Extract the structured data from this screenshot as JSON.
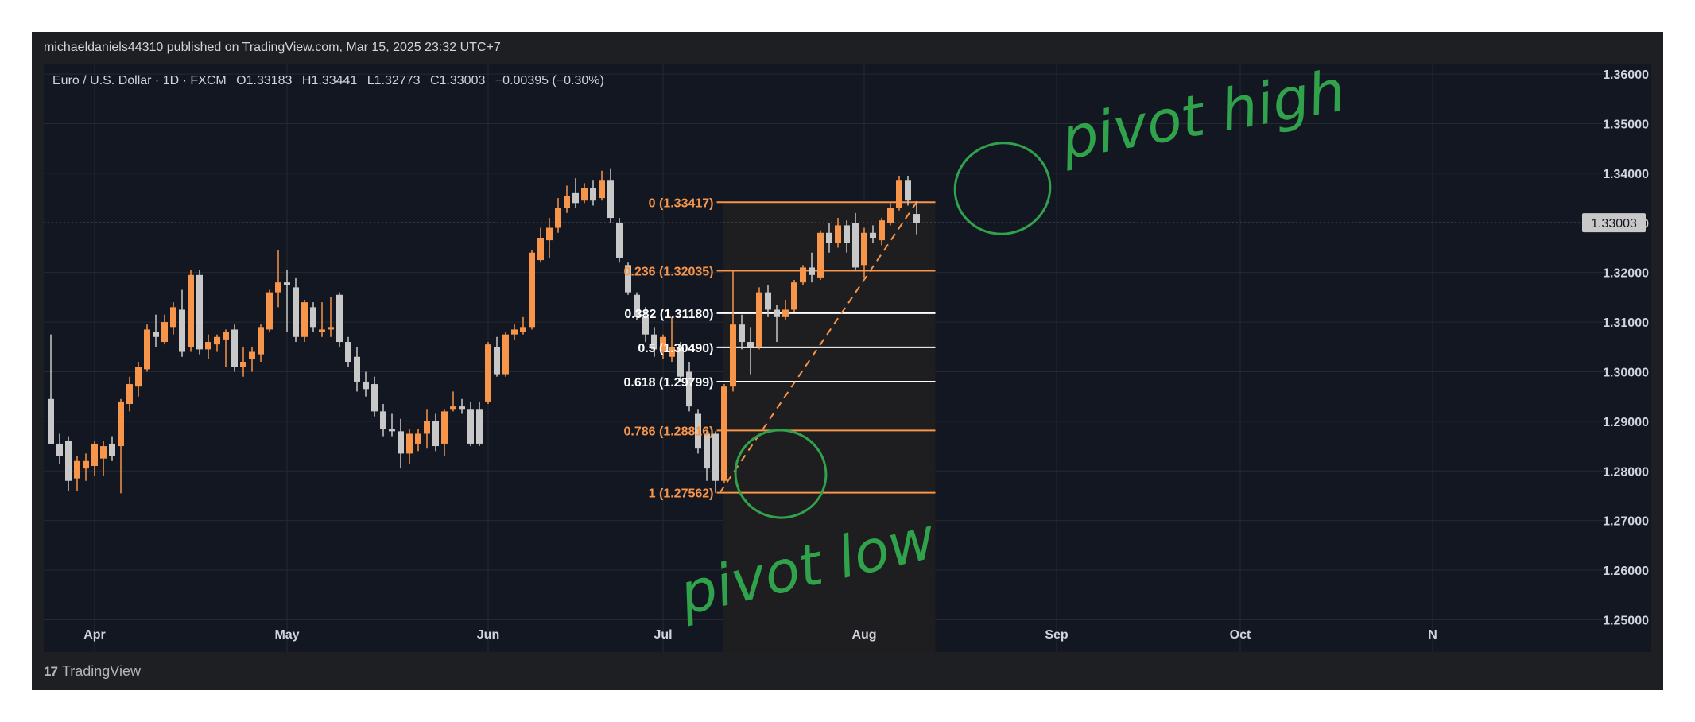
{
  "header": {
    "publisher": "michaeldaniels44310 published on TradingView.com, Mar 15, 2025 23:32 UTC+7"
  },
  "legend": {
    "symbol": "Euro / U.S. Dollar · 1D · FXCM",
    "o_key": "O",
    "o": "1.33183",
    "h_key": "H",
    "h": "1.33441",
    "l_key": "L",
    "l": "1.32773",
    "c_key": "C",
    "c": "1.33003",
    "change": "−0.00395 (−0.30%)"
  },
  "colors": {
    "background": "#131722",
    "up": "#f7954a",
    "down": "#c8c8c8",
    "fib_orange": "#f7954a",
    "fib_white": "#ffffff",
    "annotation_green": "#31a24c",
    "trend_line": "#f7954a"
  },
  "footer": {
    "brand": "TradingView",
    "icon": "tradingview-logo-icon"
  },
  "annotations": {
    "pivot_high": "pivot high",
    "pivot_low": "pivot low"
  },
  "chart_data": {
    "type": "candlestick",
    "title": "Euro / U.S. Dollar · 1D · FXCM",
    "y_axis": {
      "ticks": [
        "1.36000",
        "1.35000",
        "1.34000",
        "1.33000",
        "1.32000",
        "1.31000",
        "1.30000",
        "1.29000",
        "1.28000",
        "1.27000",
        "1.26000",
        "1.25000"
      ],
      "tick_values": [
        1.36,
        1.35,
        1.34,
        1.33,
        1.32,
        1.31,
        1.3,
        1.29,
        1.28,
        1.27,
        1.26,
        1.25
      ],
      "range": [
        1.2435,
        1.3621
      ],
      "position": "right"
    },
    "x_axis": {
      "labels": [
        "Apr",
        "May",
        "Jun",
        "Jul",
        "Aug",
        "Sep",
        "Oct",
        "N"
      ],
      "bold_labels": [
        "Jul"
      ],
      "label_days": [
        10,
        54,
        100,
        140,
        186,
        230,
        272,
        316
      ]
    },
    "grid": true,
    "last_price": {
      "value": 1.33003,
      "label": "1.33003"
    },
    "fibonacci": {
      "levels": [
        {
          "ratio": "0",
          "value": 1.33417,
          "label": "0 (1.33417)",
          "color": "orange"
        },
        {
          "ratio": "0.236",
          "value": 1.32035,
          "label": "0.236 (1.32035)",
          "color": "orange"
        },
        {
          "ratio": "0.382",
          "value": 1.3118,
          "label": "0.382 (1.31180)",
          "color": "white"
        },
        {
          "ratio": "0.5",
          "value": 1.3049,
          "label": "0.5 (1.30490)",
          "color": "white"
        },
        {
          "ratio": "0.618",
          "value": 1.29799,
          "label": "0.618 (1.29799)",
          "color": "white"
        },
        {
          "ratio": "0.786",
          "value": 1.28816,
          "label": "0.786 (1.28816)",
          "color": "orange"
        },
        {
          "ratio": "1",
          "value": 1.27562,
          "label": "1 (1.27562)",
          "color": "orange"
        }
      ],
      "start_day": 153,
      "end_day": 199,
      "trend_from": {
        "day": 153,
        "value": 1.27562
      },
      "trend_to": {
        "day": 198,
        "value": 1.33417
      }
    },
    "candles": [
      {
        "d": 0,
        "o": 1.2945,
        "h": 1.3075,
        "l": 1.2855,
        "c": 1.2855
      },
      {
        "d": 2,
        "o": 1.2855,
        "h": 1.2875,
        "l": 1.2815,
        "c": 1.283
      },
      {
        "d": 4,
        "o": 1.286,
        "h": 1.287,
        "l": 1.276,
        "c": 1.278
      },
      {
        "d": 6,
        "o": 1.2785,
        "h": 1.283,
        "l": 1.276,
        "c": 1.282
      },
      {
        "d": 8,
        "o": 1.2805,
        "h": 1.2835,
        "l": 1.278,
        "c": 1.282
      },
      {
        "d": 10,
        "o": 1.281,
        "h": 1.286,
        "l": 1.279,
        "c": 1.2855
      },
      {
        "d": 12,
        "o": 1.2825,
        "h": 1.286,
        "l": 1.279,
        "c": 1.285
      },
      {
        "d": 14,
        "o": 1.2855,
        "h": 1.287,
        "l": 1.282,
        "c": 1.283
      },
      {
        "d": 16,
        "o": 1.285,
        "h": 1.2945,
        "l": 1.2755,
        "c": 1.294
      },
      {
        "d": 18,
        "o": 1.2935,
        "h": 1.299,
        "l": 1.292,
        "c": 1.2975
      },
      {
        "d": 20,
        "o": 1.297,
        "h": 1.302,
        "l": 1.295,
        "c": 1.301
      },
      {
        "d": 22,
        "o": 1.3005,
        "h": 1.3095,
        "l": 1.3,
        "c": 1.3085
      },
      {
        "d": 24,
        "o": 1.308,
        "h": 1.3115,
        "l": 1.305,
        "c": 1.307
      },
      {
        "d": 26,
        "o": 1.306,
        "h": 1.3115,
        "l": 1.3055,
        "c": 1.31
      },
      {
        "d": 28,
        "o": 1.309,
        "h": 1.314,
        "l": 1.3075,
        "c": 1.313
      },
      {
        "d": 30,
        "o": 1.3125,
        "h": 1.3165,
        "l": 1.303,
        "c": 1.304
      },
      {
        "d": 32,
        "o": 1.305,
        "h": 1.3205,
        "l": 1.304,
        "c": 1.3195
      },
      {
        "d": 34,
        "o": 1.3195,
        "h": 1.3205,
        "l": 1.3035,
        "c": 1.3045
      },
      {
        "d": 36,
        "o": 1.3045,
        "h": 1.3075,
        "l": 1.3025,
        "c": 1.306
      },
      {
        "d": 38,
        "o": 1.3055,
        "h": 1.3075,
        "l": 1.304,
        "c": 1.307
      },
      {
        "d": 40,
        "o": 1.3065,
        "h": 1.3085,
        "l": 1.301,
        "c": 1.308
      },
      {
        "d": 42,
        "o": 1.3085,
        "h": 1.3095,
        "l": 1.3,
        "c": 1.301
      },
      {
        "d": 44,
        "o": 1.301,
        "h": 1.305,
        "l": 1.299,
        "c": 1.302
      },
      {
        "d": 46,
        "o": 1.3025,
        "h": 1.305,
        "l": 1.3,
        "c": 1.304
      },
      {
        "d": 48,
        "o": 1.3035,
        "h": 1.3095,
        "l": 1.302,
        "c": 1.309
      },
      {
        "d": 50,
        "o": 1.3085,
        "h": 1.3165,
        "l": 1.308,
        "c": 1.316
      },
      {
        "d": 52,
        "o": 1.316,
        "h": 1.3245,
        "l": 1.313,
        "c": 1.318
      },
      {
        "d": 54,
        "o": 1.318,
        "h": 1.3205,
        "l": 1.308,
        "c": 1.3175
      },
      {
        "d": 56,
        "o": 1.317,
        "h": 1.319,
        "l": 1.306,
        "c": 1.307
      },
      {
        "d": 58,
        "o": 1.307,
        "h": 1.3145,
        "l": 1.306,
        "c": 1.314
      },
      {
        "d": 60,
        "o": 1.313,
        "h": 1.314,
        "l": 1.308,
        "c": 1.309
      },
      {
        "d": 62,
        "o": 1.308,
        "h": 1.314,
        "l": 1.307,
        "c": 1.3085
      },
      {
        "d": 64,
        "o": 1.3085,
        "h": 1.315,
        "l": 1.307,
        "c": 1.309
      },
      {
        "d": 66,
        "o": 1.3155,
        "h": 1.316,
        "l": 1.305,
        "c": 1.306
      },
      {
        "d": 68,
        "o": 1.306,
        "h": 1.307,
        "l": 1.301,
        "c": 1.302
      },
      {
        "d": 70,
        "o": 1.303,
        "h": 1.305,
        "l": 1.296,
        "c": 1.298
      },
      {
        "d": 72,
        "o": 1.298,
        "h": 1.3,
        "l": 1.295,
        "c": 1.2965
      },
      {
        "d": 74,
        "o": 1.2975,
        "h": 1.299,
        "l": 1.291,
        "c": 1.292
      },
      {
        "d": 76,
        "o": 1.292,
        "h": 1.2935,
        "l": 1.287,
        "c": 1.2885
      },
      {
        "d": 78,
        "o": 1.2885,
        "h": 1.2915,
        "l": 1.287,
        "c": 1.288
      },
      {
        "d": 80,
        "o": 1.288,
        "h": 1.2905,
        "l": 1.2805,
        "c": 1.2835
      },
      {
        "d": 82,
        "o": 1.2835,
        "h": 1.2885,
        "l": 1.2815,
        "c": 1.2875
      },
      {
        "d": 84,
        "o": 1.2855,
        "h": 1.2885,
        "l": 1.284,
        "c": 1.2875
      },
      {
        "d": 86,
        "o": 1.2875,
        "h": 1.2925,
        "l": 1.2845,
        "c": 1.29
      },
      {
        "d": 88,
        "o": 1.29,
        "h": 1.2915,
        "l": 1.284,
        "c": 1.285
      },
      {
        "d": 90,
        "o": 1.2855,
        "h": 1.2925,
        "l": 1.283,
        "c": 1.292
      },
      {
        "d": 92,
        "o": 1.2925,
        "h": 1.296,
        "l": 1.292,
        "c": 1.293
      },
      {
        "d": 94,
        "o": 1.293,
        "h": 1.2945,
        "l": 1.2915,
        "c": 1.2925
      },
      {
        "d": 96,
        "o": 1.2925,
        "h": 1.294,
        "l": 1.285,
        "c": 1.2855
      },
      {
        "d": 98,
        "o": 1.2925,
        "h": 1.294,
        "l": 1.285,
        "c": 1.2855
      },
      {
        "d": 100,
        "o": 1.294,
        "h": 1.306,
        "l": 1.2935,
        "c": 1.3055
      },
      {
        "d": 102,
        "o": 1.305,
        "h": 1.307,
        "l": 1.299,
        "c": 1.2995
      },
      {
        "d": 104,
        "o": 1.2995,
        "h": 1.308,
        "l": 1.299,
        "c": 1.3075
      },
      {
        "d": 106,
        "o": 1.3075,
        "h": 1.3095,
        "l": 1.3065,
        "c": 1.3085
      },
      {
        "d": 108,
        "o": 1.308,
        "h": 1.311,
        "l": 1.3075,
        "c": 1.309
      },
      {
        "d": 110,
        "o": 1.309,
        "h": 1.3245,
        "l": 1.3085,
        "c": 1.324
      },
      {
        "d": 112,
        "o": 1.3225,
        "h": 1.329,
        "l": 1.322,
        "c": 1.327
      },
      {
        "d": 114,
        "o": 1.3265,
        "h": 1.331,
        "l": 1.323,
        "c": 1.329
      },
      {
        "d": 116,
        "o": 1.329,
        "h": 1.335,
        "l": 1.328,
        "c": 1.333
      },
      {
        "d": 118,
        "o": 1.333,
        "h": 1.3375,
        "l": 1.332,
        "c": 1.3355
      },
      {
        "d": 120,
        "o": 1.336,
        "h": 1.339,
        "l": 1.333,
        "c": 1.334
      },
      {
        "d": 122,
        "o": 1.3345,
        "h": 1.338,
        "l": 1.334,
        "c": 1.337
      },
      {
        "d": 124,
        "o": 1.337,
        "h": 1.3385,
        "l": 1.3335,
        "c": 1.3345
      },
      {
        "d": 126,
        "o": 1.335,
        "h": 1.3405,
        "l": 1.3345,
        "c": 1.3385
      },
      {
        "d": 128,
        "o": 1.3385,
        "h": 1.341,
        "l": 1.33,
        "c": 1.331
      },
      {
        "d": 130,
        "o": 1.33,
        "h": 1.331,
        "l": 1.322,
        "c": 1.323
      },
      {
        "d": 132,
        "o": 1.3215,
        "h": 1.322,
        "l": 1.3155,
        "c": 1.316
      },
      {
        "d": 134,
        "o": 1.3155,
        "h": 1.316,
        "l": 1.3105,
        "c": 1.311
      },
      {
        "d": 136,
        "o": 1.311,
        "h": 1.313,
        "l": 1.306,
        "c": 1.3075
      },
      {
        "d": 138,
        "o": 1.3075,
        "h": 1.309,
        "l": 1.303,
        "c": 1.3045
      },
      {
        "d": 140,
        "o": 1.304,
        "h": 1.3075,
        "l": 1.3025,
        "c": 1.307
      },
      {
        "d": 142,
        "o": 1.303,
        "h": 1.311,
        "l": 1.302,
        "c": 1.305
      },
      {
        "d": 144,
        "o": 1.305,
        "h": 1.306,
        "l": 1.298,
        "c": 1.299
      },
      {
        "d": 146,
        "o": 1.3,
        "h": 1.302,
        "l": 1.292,
        "c": 1.293
      },
      {
        "d": 148,
        "o": 1.2915,
        "h": 1.2925,
        "l": 1.2835,
        "c": 1.2845
      },
      {
        "d": 150,
        "o": 1.2875,
        "h": 1.288,
        "l": 1.278,
        "c": 1.2805
      },
      {
        "d": 152,
        "o": 1.2875,
        "h": 1.288,
        "l": 1.2756,
        "c": 1.278
      },
      {
        "d": 154,
        "o": 1.278,
        "h": 1.2975,
        "l": 1.2775,
        "c": 1.297
      },
      {
        "d": 156,
        "o": 1.297,
        "h": 1.3205,
        "l": 1.296,
        "c": 1.3095
      },
      {
        "d": 158,
        "o": 1.3095,
        "h": 1.3115,
        "l": 1.3045,
        "c": 1.306
      },
      {
        "d": 160,
        "o": 1.306,
        "h": 1.309,
        "l": 1.2995,
        "c": 1.305
      },
      {
        "d": 162,
        "o": 1.305,
        "h": 1.317,
        "l": 1.3045,
        "c": 1.316
      },
      {
        "d": 164,
        "o": 1.316,
        "h": 1.3175,
        "l": 1.311,
        "c": 1.3125
      },
      {
        "d": 166,
        "o": 1.3125,
        "h": 1.3135,
        "l": 1.306,
        "c": 1.311
      },
      {
        "d": 168,
        "o": 1.311,
        "h": 1.3145,
        "l": 1.3105,
        "c": 1.3125
      },
      {
        "d": 170,
        "o": 1.3125,
        "h": 1.3185,
        "l": 1.312,
        "c": 1.318
      },
      {
        "d": 172,
        "o": 1.318,
        "h": 1.3215,
        "l": 1.3175,
        "c": 1.321
      },
      {
        "d": 174,
        "o": 1.321,
        "h": 1.324,
        "l": 1.318,
        "c": 1.3195
      },
      {
        "d": 176,
        "o": 1.319,
        "h": 1.3285,
        "l": 1.3185,
        "c": 1.328
      },
      {
        "d": 178,
        "o": 1.328,
        "h": 1.33,
        "l": 1.324,
        "c": 1.326
      },
      {
        "d": 180,
        "o": 1.326,
        "h": 1.331,
        "l": 1.325,
        "c": 1.3295
      },
      {
        "d": 182,
        "o": 1.3295,
        "h": 1.3305,
        "l": 1.324,
        "c": 1.326
      },
      {
        "d": 184,
        "o": 1.33,
        "h": 1.332,
        "l": 1.3205,
        "c": 1.321
      },
      {
        "d": 186,
        "o": 1.3215,
        "h": 1.329,
        "l": 1.319,
        "c": 1.328
      },
      {
        "d": 188,
        "o": 1.328,
        "h": 1.3295,
        "l": 1.326,
        "c": 1.327
      },
      {
        "d": 190,
        "o": 1.3265,
        "h": 1.331,
        "l": 1.3255,
        "c": 1.3305
      },
      {
        "d": 192,
        "o": 1.33,
        "h": 1.334,
        "l": 1.3295,
        "c": 1.333
      },
      {
        "d": 194,
        "o": 1.333,
        "h": 1.3395,
        "l": 1.3325,
        "c": 1.3385
      },
      {
        "d": 196,
        "o": 1.3385,
        "h": 1.3395,
        "l": 1.3335,
        "c": 1.3345
      },
      {
        "d": 198,
        "o": 1.3318,
        "h": 1.3344,
        "l": 1.3277,
        "c": 1.33
      }
    ]
  }
}
